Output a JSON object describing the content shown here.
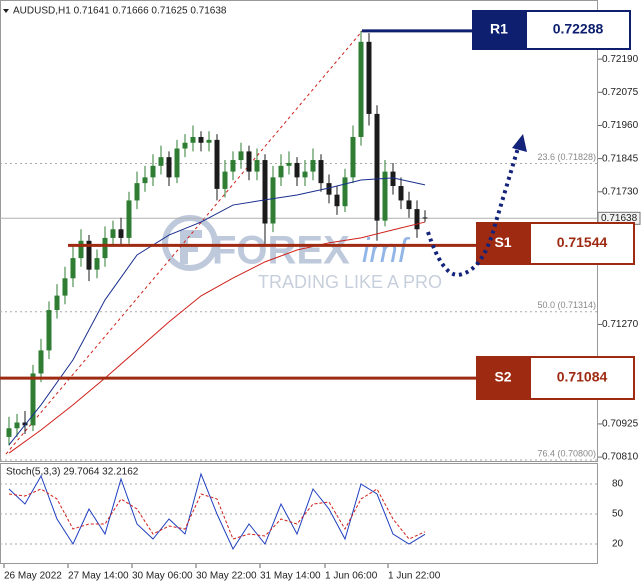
{
  "header": {
    "symbol_line": "AUDUSD,H1  0.71641 0.71666 0.71625 0.71638"
  },
  "watermark": {
    "brand": "FOREX",
    "brand_suffix": "imf",
    "tagline": "TRADING LIKE A PRO"
  },
  "chart_data": [
    {
      "type": "candlestick",
      "up_color": "#2e7d32",
      "down_color": "#1b1b1b",
      "xlim": [
        -1.125,
        73.625
      ],
      "ylim": [
        0.70793,
        0.72395
      ],
      "yticks": [
        {
          "value": 0.7219,
          "label": "0.72190"
        },
        {
          "value": 0.72075,
          "label": "0.72075"
        },
        {
          "value": 0.7196,
          "label": "0.71960"
        },
        {
          "value": 0.71845,
          "label": "0.71845"
        },
        {
          "value": 0.7173,
          "label": "0.71730"
        },
        {
          "value": 0.7127,
          "label": "0.71270"
        },
        {
          "value": 0.70925,
          "label": "0.70925"
        },
        {
          "value": 0.7081,
          "label": "0.70810"
        }
      ],
      "xticks": [
        {
          "value": -0.625,
          "label": "26 May 2022"
        },
        {
          "value": 7.375,
          "label": "27 May 14:00"
        },
        {
          "value": 15.375,
          "label": "30 May 06:00"
        },
        {
          "value": 23.375,
          "label": "30 May 22:00"
        },
        {
          "value": 31.375,
          "label": "31 May 14:00"
        },
        {
          "value": 39.5,
          "label": "1 Jun 06:00"
        },
        {
          "value": 47.375,
          "label": "1 Jun 22:00"
        }
      ],
      "open": [
        0.7088,
        0.7091,
        0.7093,
        0.7092,
        0.711,
        0.7118,
        0.7132,
        0.7137,
        0.7143,
        0.715,
        0.7156,
        0.7146,
        0.715,
        0.7157,
        0.716,
        0.7157,
        0.717,
        0.7176,
        0.7178,
        0.7182,
        0.7185,
        0.7178,
        0.7188,
        0.719,
        0.7192,
        0.719,
        0.7191,
        0.7174,
        0.718,
        0.7184,
        0.7187,
        0.718,
        0.7184,
        0.7162,
        0.7178,
        0.7182,
        0.7183,
        0.7178,
        0.718,
        0.7184,
        0.7176,
        0.7172,
        0.7168,
        0.7178,
        0.7192,
        0.7225,
        0.72,
        0.7163,
        0.718,
        0.7175,
        0.717,
        0.7167,
        0.71641
      ],
      "high": [
        0.7095,
        0.7096,
        0.7097,
        0.7113,
        0.7122,
        0.7135,
        0.7141,
        0.7147,
        0.7154,
        0.716,
        0.7158,
        0.7153,
        0.7161,
        0.7163,
        0.7164,
        0.7173,
        0.718,
        0.7182,
        0.7186,
        0.7189,
        0.7187,
        0.7191,
        0.7193,
        0.7196,
        0.7194,
        0.7194,
        0.7193,
        0.7184,
        0.7187,
        0.719,
        0.7189,
        0.7188,
        0.7186,
        0.7182,
        0.7186,
        0.7187,
        0.7185,
        0.7184,
        0.7188,
        0.7186,
        0.7179,
        0.7175,
        0.7181,
        0.7196,
        0.72288,
        0.7228,
        0.7203,
        0.7184,
        0.7183,
        0.7178,
        0.7173,
        0.717,
        0.71666
      ],
      "low": [
        0.7085,
        0.7088,
        0.7089,
        0.709,
        0.7107,
        0.7115,
        0.7129,
        0.7134,
        0.714,
        0.7147,
        0.7142,
        0.7143,
        0.7147,
        0.7154,
        0.7154,
        0.7155,
        0.7167,
        0.7173,
        0.7175,
        0.7179,
        0.7175,
        0.7176,
        0.7185,
        0.7187,
        0.7187,
        0.7187,
        0.717,
        0.7171,
        0.7177,
        0.7181,
        0.7177,
        0.7177,
        0.7155,
        0.7159,
        0.7175,
        0.7179,
        0.7175,
        0.7175,
        0.7177,
        0.7173,
        0.7169,
        0.7165,
        0.7166,
        0.7176,
        0.7189,
        0.7196,
        0.7156,
        0.7161,
        0.7172,
        0.7167,
        0.7164,
        0.7157,
        0.71625
      ],
      "close": [
        0.7091,
        0.7093,
        0.7092,
        0.711,
        0.7118,
        0.7132,
        0.7137,
        0.7143,
        0.715,
        0.7156,
        0.7146,
        0.715,
        0.7157,
        0.716,
        0.7157,
        0.717,
        0.7176,
        0.7178,
        0.7182,
        0.7185,
        0.7178,
        0.7188,
        0.719,
        0.7192,
        0.719,
        0.7191,
        0.7174,
        0.718,
        0.7184,
        0.7187,
        0.718,
        0.7184,
        0.7162,
        0.7178,
        0.7182,
        0.7183,
        0.7178,
        0.718,
        0.7184,
        0.7176,
        0.7172,
        0.7168,
        0.7178,
        0.7192,
        0.7225,
        0.72,
        0.7163,
        0.718,
        0.7175,
        0.717,
        0.7167,
        0.716,
        0.71638
      ],
      "series": [
        {
          "color": "#1a2f8f",
          "x": [
            0,
            4,
            8,
            12,
            16,
            20,
            24,
            28,
            32,
            36,
            40,
            44,
            48,
            52
          ],
          "values": [
            0.70852,
            0.70991,
            0.71147,
            0.71355,
            0.71511,
            0.7158,
            0.71625,
            0.71684,
            0.71702,
            0.71719,
            0.71743,
            0.71771,
            0.71778,
            0.71754
          ]
        },
        {
          "color": "#d0201a",
          "x": [
            0,
            4,
            8,
            12,
            16,
            20,
            24,
            28,
            32,
            36,
            40,
            44,
            48,
            52
          ],
          "values": [
            0.70824,
            0.70904,
            0.70991,
            0.71084,
            0.71181,
            0.71279,
            0.71369,
            0.71431,
            0.71487,
            0.71528,
            0.71553,
            0.7157,
            0.71598,
            0.71625
          ]
        }
      ],
      "current_price": 0.71638,
      "levels": [
        {
          "name": "R1",
          "value": 0.72288,
          "color": "#0d1f6e"
        },
        {
          "name": "S1",
          "value": 0.71544,
          "color": "#9e2a12"
        },
        {
          "name": "S2",
          "value": 0.71084,
          "color": "#9e2a12"
        }
      ],
      "fib": [
        {
          "label": "23.6 (0.71828)",
          "value": 0.71828
        },
        {
          "label": "50.0 (0.71314)",
          "value": 0.71314
        },
        {
          "label": "76.4 (0.70800)",
          "value": 0.708
        }
      ]
    },
    {
      "type": "line",
      "title": "Stoch(5,3,3) 29.7064 32.2162",
      "xlim": [
        -1.125,
        73.625
      ],
      "ylim": [
        0,
        100
      ],
      "yticks": [
        80,
        50,
        20
      ],
      "series": [
        {
          "color": "#1f3fbf",
          "dash": false,
          "x": [
            0,
            2,
            4,
            6,
            8,
            10,
            12,
            14,
            16,
            18,
            20,
            22,
            24,
            26,
            28,
            30,
            32,
            34,
            36,
            38,
            40,
            42,
            44,
            46,
            48,
            50,
            52
          ],
          "values": [
            75,
            60,
            88,
            45,
            20,
            55,
            30,
            85,
            40,
            25,
            45,
            30,
            90,
            50,
            15,
            40,
            20,
            60,
            30,
            75,
            55,
            25,
            80,
            70,
            30,
            20,
            29.7064
          ]
        },
        {
          "color": "#d0201a",
          "dash": true,
          "x": [
            0,
            2,
            4,
            6,
            8,
            10,
            12,
            14,
            16,
            18,
            20,
            22,
            24,
            26,
            28,
            30,
            32,
            34,
            36,
            38,
            40,
            42,
            44,
            46,
            48,
            50,
            52
          ],
          "values": [
            70,
            68,
            75,
            65,
            35,
            40,
            40,
            65,
            55,
            30,
            38,
            35,
            70,
            65,
            25,
            30,
            28,
            45,
            40,
            60,
            62,
            35,
            65,
            75,
            45,
            25,
            32.2162
          ]
        }
      ]
    }
  ]
}
